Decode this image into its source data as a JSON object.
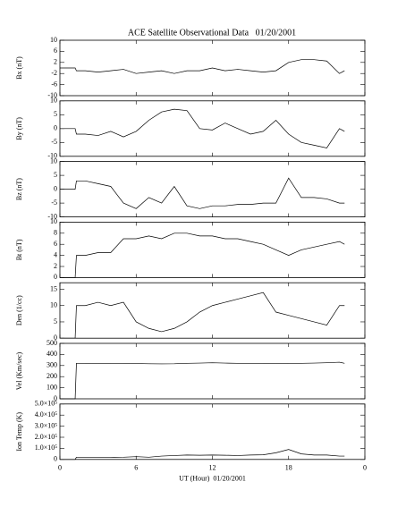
{
  "chart_data": [
    {
      "type": "line",
      "title": "ACE Satellite Observational Data   01/20/2001",
      "ylabel": "Bx (nT)",
      "xlim": [
        0,
        24
      ],
      "ylim": [
        -10,
        10
      ],
      "yticks": [
        -10,
        -6,
        -2,
        2,
        6,
        10
      ],
      "color": "#000000",
      "x": [
        0,
        1.2,
        1.3,
        2,
        3,
        4,
        5,
        6,
        7,
        8,
        9,
        10,
        11,
        12,
        13,
        14,
        15,
        16,
        17,
        18,
        19,
        20,
        21,
        22,
        22.4
      ],
      "values": [
        0,
        0,
        -1,
        -1,
        -1.5,
        -1,
        -0.5,
        -2,
        -1.5,
        -1,
        -2,
        -1,
        -1,
        0,
        -1,
        -0.5,
        -1,
        -1.5,
        -1,
        2,
        3,
        3,
        2.5,
        -2,
        -1
      ]
    },
    {
      "type": "line",
      "ylabel": "By (nT)",
      "xlim": [
        0,
        24
      ],
      "ylim": [
        -10,
        10
      ],
      "yticks": [
        -10,
        -5,
        0,
        5,
        10
      ],
      "color": "#000000",
      "x": [
        0,
        1.2,
        1.3,
        2,
        3,
        4,
        5,
        6,
        7,
        8,
        9,
        10,
        11,
        12,
        13,
        14,
        15,
        16,
        17,
        18,
        19,
        20,
        21,
        22,
        22.4
      ],
      "values": [
        0,
        0,
        -2,
        -2,
        -2.5,
        -1,
        -3,
        -1,
        3,
        6,
        7,
        6.5,
        0,
        -0.5,
        2,
        0,
        -2,
        -1,
        3,
        -2,
        -5,
        -6,
        -7,
        0,
        -1
      ]
    },
    {
      "type": "line",
      "ylabel": "Bz (nT)",
      "xlim": [
        0,
        24
      ],
      "ylim": [
        -10,
        10
      ],
      "yticks": [
        -10,
        -5,
        0,
        5,
        10
      ],
      "color": "#000000",
      "x": [
        0,
        1.2,
        1.3,
        2,
        3,
        4,
        5,
        6,
        7,
        8,
        9,
        10,
        11,
        12,
        13,
        14,
        15,
        16,
        17,
        18,
        19,
        20,
        21,
        22,
        22.4
      ],
      "values": [
        0,
        0,
        3,
        3,
        2,
        1,
        -5,
        -7,
        -3,
        -5,
        1,
        -6,
        -7,
        -6,
        -6,
        -5.5,
        -5.5,
        -5,
        -5,
        4,
        -3,
        -3,
        -3.5,
        -5,
        -5
      ]
    },
    {
      "type": "line",
      "ylabel": "Bt (nT)",
      "xlim": [
        0,
        24
      ],
      "ylim": [
        0,
        10
      ],
      "yticks": [
        0,
        2,
        4,
        6,
        8,
        10
      ],
      "color": "#000000",
      "x": [
        0,
        1.2,
        1.3,
        2,
        3,
        4,
        5,
        6,
        7,
        8,
        9,
        10,
        11,
        12,
        13,
        14,
        15,
        16,
        17,
        18,
        19,
        20,
        21,
        22,
        22.4
      ],
      "values": [
        0,
        0,
        4,
        4,
        4.5,
        4.5,
        7,
        7,
        7.5,
        7,
        8,
        8,
        7.5,
        7.5,
        7,
        7,
        6.5,
        6,
        5,
        4,
        5,
        5.5,
        6,
        6.5,
        6
      ]
    },
    {
      "type": "line",
      "ylabel": "Den (1/cc)",
      "xlim": [
        0,
        24
      ],
      "ylim": [
        0,
        17
      ],
      "yticks": [
        0,
        5,
        10,
        15
      ],
      "color": "#000000",
      "x": [
        0,
        1.2,
        1.3,
        2,
        3,
        4,
        5,
        6,
        7,
        8,
        9,
        10,
        11,
        12,
        13,
        14,
        15,
        16,
        17,
        18,
        19,
        20,
        21,
        22,
        22.4
      ],
      "values": [
        0,
        0,
        10,
        10,
        11,
        10,
        11,
        5,
        3,
        2,
        3,
        5,
        8,
        10,
        11,
        12,
        13,
        14,
        8,
        7,
        6,
        5,
        4,
        10,
        10
      ]
    },
    {
      "type": "line",
      "ylabel": "Vel (Km/sec)",
      "xlim": [
        0,
        24
      ],
      "ylim": [
        0,
        500
      ],
      "yticks": [
        0,
        100,
        200,
        300,
        400,
        500
      ],
      "color": "#000000",
      "x": [
        0,
        1.2,
        1.3,
        2,
        3,
        4,
        5,
        6,
        7,
        8,
        9,
        10,
        11,
        12,
        13,
        14,
        15,
        16,
        17,
        18,
        19,
        20,
        21,
        22,
        22.4
      ],
      "values": [
        0,
        0,
        320,
        320,
        318,
        320,
        320,
        318,
        316,
        315,
        316,
        320,
        322,
        325,
        322,
        320,
        320,
        320,
        318,
        320,
        320,
        322,
        325,
        330,
        320
      ]
    },
    {
      "type": "line",
      "ylabel": "Ion Temp (K)",
      "xlabel": "UT (Hour)  01/20/2001",
      "xlim": [
        0,
        24
      ],
      "xticks": [
        0,
        6,
        12,
        18,
        {
          "value": 24,
          "label": "0"
        }
      ],
      "ylim": [
        0,
        500000
      ],
      "yticks": [
        0,
        {
          "value": 100000,
          "label": "1.0×10⁵"
        },
        {
          "value": 200000,
          "label": "2.0×10⁵"
        },
        {
          "value": 300000,
          "label": "3.0×10⁵"
        },
        {
          "value": 400000,
          "label": "4.0×10⁵"
        },
        {
          "value": 500000,
          "label": "5.0×10⁵"
        }
      ],
      "color": "#000000",
      "x": [
        0,
        1.2,
        1.3,
        2,
        3,
        4,
        5,
        6,
        7,
        8,
        9,
        10,
        11,
        12,
        13,
        14,
        15,
        16,
        17,
        18,
        19,
        20,
        21,
        22,
        22.4
      ],
      "values": [
        0,
        0,
        20000,
        20000,
        20000,
        18000,
        20000,
        25000,
        20000,
        30000,
        35000,
        40000,
        38000,
        40000,
        38000,
        35000,
        40000,
        42000,
        60000,
        90000,
        50000,
        40000,
        40000,
        30000,
        30000
      ]
    }
  ]
}
